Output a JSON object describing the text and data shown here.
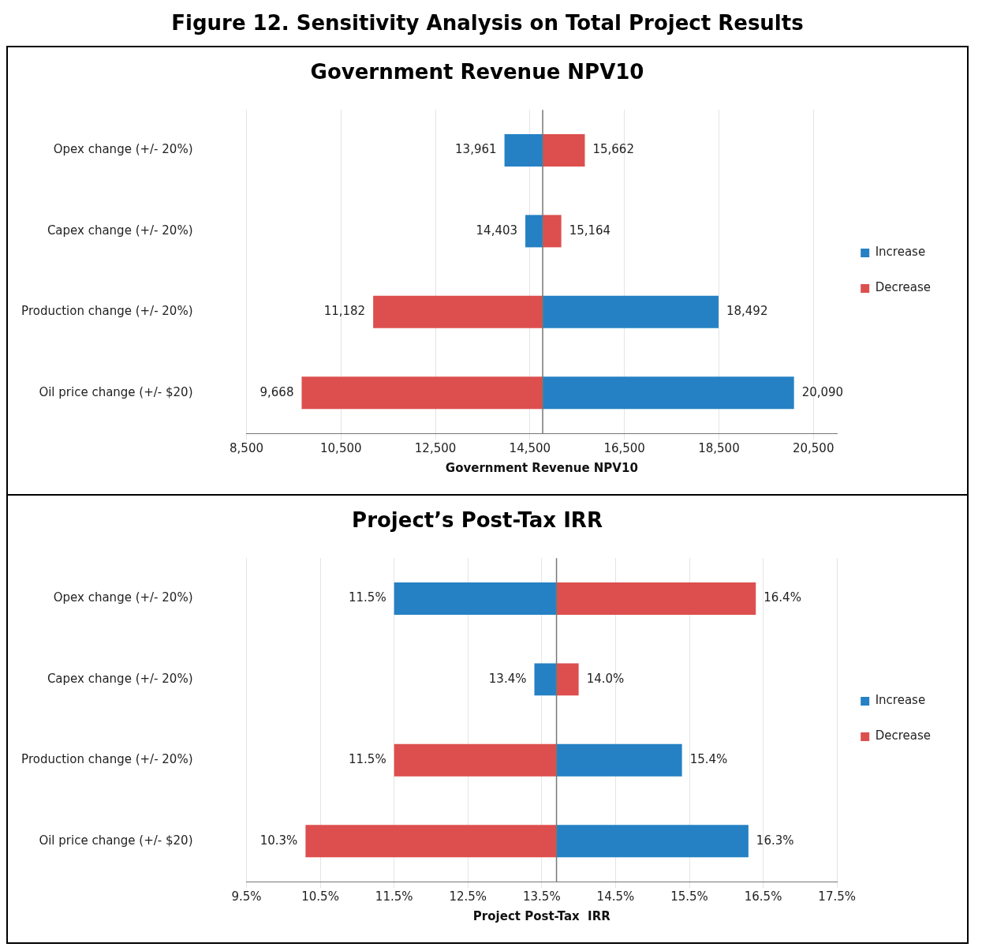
{
  "chart_data": [
    {
      "type": "bar",
      "orientation": "horizontal",
      "annotations": [
        "Figure 12. Sensitivity Analysis on Total Project Results"
      ],
      "title": "Government Revenue NPV10",
      "xlabel": "Government Revenue NPV10",
      "categories": [
        "Opex change (+/- 20%)",
        "Capex change (+/- 20%)",
        "Production change (+/- 20%)",
        "Oil price change (+/- $20)"
      ],
      "series": [
        {
          "name": "Increase",
          "color": "#2581c4",
          "base": [
            14770,
            14770,
            14770,
            14770
          ],
          "values": [
            -809,
            -367,
            3722,
            5320
          ],
          "value_labels": [
            "13,961",
            "14,403",
            "18,492",
            "20,090"
          ]
        },
        {
          "name": "Decrease",
          "color": "#dc4f4e",
          "base": [
            14770,
            14770,
            14770,
            14770
          ],
          "values": [
            892,
            394,
            -3588,
            -5102
          ],
          "value_labels": [
            "15,662",
            "15,164",
            "11,182",
            "9,668"
          ]
        }
      ],
      "xlim": [
        8500,
        21000
      ],
      "xticks": [
        {
          "value": 8500,
          "label": "8,500"
        },
        {
          "value": 10500,
          "label": "10,500"
        },
        {
          "value": 12500,
          "label": "12,500"
        },
        {
          "value": 14500,
          "label": "14,500"
        },
        {
          "value": 16500,
          "label": "16,500"
        },
        {
          "value": 18500,
          "label": "18,500"
        },
        {
          "value": 20500,
          "label": "20,500"
        }
      ],
      "ref_lines": [
        {
          "axis": "x",
          "value": 14770,
          "color": "#777777"
        }
      ],
      "grid": "x",
      "legend": "right"
    },
    {
      "type": "bar",
      "orientation": "horizontal",
      "title": "Project’s Post-Tax IRR",
      "xlabel": "Project Post-Tax  IRR",
      "categories": [
        "Opex change (+/- 20%)",
        "Capex change (+/- 20%)",
        "Production change (+/- 20%)",
        "Oil price change (+/- $20)"
      ],
      "series": [
        {
          "name": "Increase",
          "color": "#2581c4",
          "base": [
            13.7,
            13.7,
            13.7,
            13.7
          ],
          "values": [
            -2.2,
            -0.3,
            1.7,
            2.6
          ],
          "value_labels": [
            "11.5%",
            "13.4%",
            "15.4%",
            "16.3%"
          ]
        },
        {
          "name": "Decrease",
          "color": "#dc4f4e",
          "base": [
            13.7,
            13.7,
            13.7,
            13.7
          ],
          "values": [
            2.7,
            0.3,
            -2.2,
            -3.4
          ],
          "value_labels": [
            "16.4%",
            "14.0%",
            "11.5%",
            "10.3%"
          ]
        }
      ],
      "xlim": [
        9.5,
        17.5
      ],
      "xticks": [
        {
          "value": 9.5,
          "label": "9.5%"
        },
        {
          "value": 10.5,
          "label": "10.5%"
        },
        {
          "value": 11.5,
          "label": "11.5%"
        },
        {
          "value": 12.5,
          "label": "12.5%"
        },
        {
          "value": 13.5,
          "label": "13.5%"
        },
        {
          "value": 14.5,
          "label": "14.5%"
        },
        {
          "value": 15.5,
          "label": "15.5%"
        },
        {
          "value": 16.5,
          "label": "16.5%"
        },
        {
          "value": 17.5,
          "label": "17.5%"
        }
      ],
      "ref_lines": [
        {
          "axis": "x",
          "value": 13.7,
          "color": "#777777"
        }
      ],
      "grid": "x",
      "legend": "right"
    }
  ]
}
